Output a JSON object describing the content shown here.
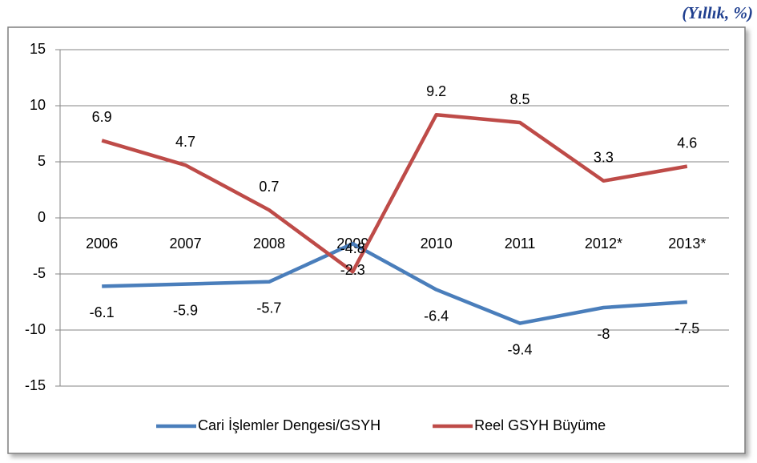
{
  "chart_data": {
    "type": "line",
    "unit": "(Yıllık, %)",
    "categories": [
      "2006",
      "2007",
      "2008",
      "2009",
      "2010",
      "2011",
      "2012*",
      "2013*"
    ],
    "series": [
      {
        "name": "Cari İşlemler Dengesi/GSYH",
        "color": "#4a7ebb",
        "values": [
          -6.1,
          -5.9,
          -5.7,
          -2.3,
          -6.4,
          -9.4,
          -8,
          -7.5
        ]
      },
      {
        "name": "Reel GSYH Büyüme",
        "color": "#be4b48",
        "values": [
          6.9,
          4.7,
          0.7,
          -4.8,
          9.2,
          8.5,
          3.3,
          4.6
        ]
      }
    ],
    "ylim": [
      -15,
      15
    ],
    "yticks": [
      -15,
      -10,
      -5,
      0,
      5,
      10,
      15
    ],
    "grid": true,
    "legend": "bottom"
  }
}
